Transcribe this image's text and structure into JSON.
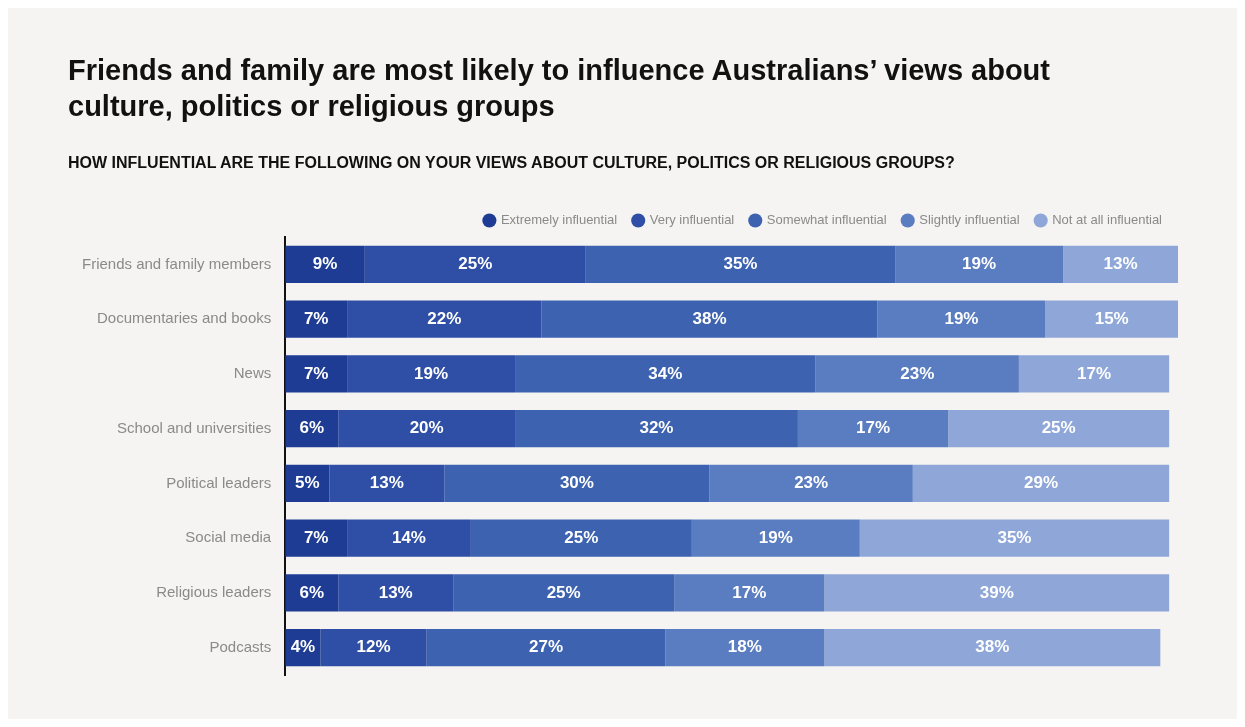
{
  "chart_data": {
    "type": "bar",
    "orientation": "horizontal",
    "stacked": true,
    "title": "Friends and family are most likely to influence Australians’ views about culture, politics or religious groups",
    "subtitle": "HOW INFLUENTIAL ARE THE FOLLOWING ON YOUR VIEWS ABOUT CULTURE, POLITICS OR RELIGIOUS GROUPS?",
    "categories": [
      "Friends and family members",
      "Documentaries and books",
      "News",
      "School and universities",
      "Political leaders",
      "Social media",
      "Religious leaders",
      "Podcasts"
    ],
    "series": [
      {
        "name": "Extremely influential",
        "color": "#1f3c94",
        "values": [
          9,
          7,
          7,
          6,
          5,
          7,
          6,
          4
        ],
        "value_labels": [
          "9%",
          "7%",
          "7%",
          "6%",
          "5%",
          "7%",
          "6%",
          "4%"
        ]
      },
      {
        "name": "Very influential",
        "color": "#2f4fa6",
        "values": [
          25,
          22,
          19,
          20,
          13,
          14,
          13,
          12
        ],
        "value_labels": [
          "25%",
          "22%",
          "19%",
          "20%",
          "13%",
          "14%",
          "13%",
          "12%"
        ]
      },
      {
        "name": "Somewhat influential",
        "color": "#3d62b0",
        "values": [
          35,
          38,
          34,
          32,
          30,
          25,
          25,
          27
        ],
        "value_labels": [
          "35%",
          "38%",
          "34%",
          "32%",
          "30%",
          "25%",
          "25%",
          "27%"
        ]
      },
      {
        "name": "Slightly influential",
        "color": "#5a7cc0",
        "values": [
          19,
          19,
          23,
          17,
          23,
          19,
          17,
          18
        ],
        "value_labels": [
          "19%",
          "19%",
          "23%",
          "17%",
          "23%",
          "19%",
          "17%",
          "18%"
        ]
      },
      {
        "name": "Not at all influential",
        "color": "#8ea7d8",
        "values": [
          13,
          15,
          17,
          25,
          29,
          35,
          39,
          38
        ],
        "value_labels": [
          "13%",
          "15%",
          "17%",
          "25%",
          "29%",
          "35%",
          "39%",
          "38%"
        ]
      }
    ],
    "legend": "top right"
  }
}
